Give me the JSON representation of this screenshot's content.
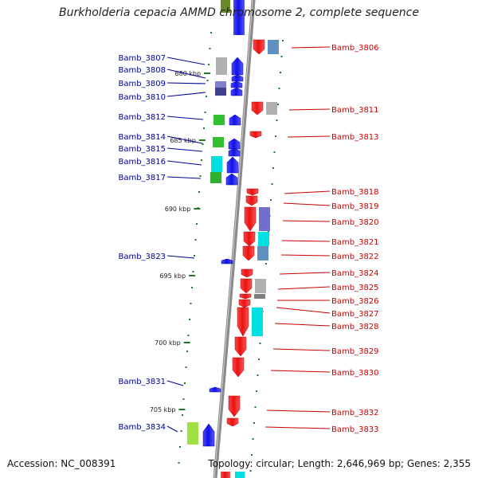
{
  "title": "Burkholderia cepacia AMMD chromosome 2, complete sequence",
  "footer": {
    "accession": "Accession: NC_008391",
    "stats": "Topology: circular; Length: 2,646,969 bp; Genes: 2,355"
  },
  "colors": {
    "backbone": "#8a8a8a",
    "forward_strand": "#1010ee",
    "reverse_strand": "#ee1010",
    "forward_label": "#000099",
    "reverse_label": "#cc0000",
    "tick": "#1e7a1e"
  },
  "axis": {
    "unit": "kbp",
    "visible_tick_labels": [
      "680 kbp",
      "685 kbp",
      "690 kbp",
      "695 kbp",
      "700 kbp",
      "705 kbp"
    ]
  },
  "forward_genes": [
    {
      "label": "Bamb_3807",
      "cog_color": "#b0b0b0"
    },
    {
      "label": "Bamb_3808",
      "cog_color": ""
    },
    {
      "label": "Bamb_3809",
      "cog_color": "#8080cc"
    },
    {
      "label": "Bamb_3810",
      "cog_color": "#404090"
    },
    {
      "label": "Bamb_3812",
      "cog_color": "#30c030"
    },
    {
      "label": "Bamb_3814",
      "cog_color": "#30c030"
    },
    {
      "label": "Bamb_3815",
      "cog_color": ""
    },
    {
      "label": "Bamb_3816",
      "cog_color": "#00e0e0"
    },
    {
      "label": "Bamb_3817",
      "cog_color": "#30b030"
    },
    {
      "label": "Bamb_3823",
      "cog_color": ""
    },
    {
      "label": "Bamb_3831",
      "cog_color": ""
    },
    {
      "label": "Bamb_3834",
      "cog_color": "#a0e040"
    }
  ],
  "reverse_genes": [
    {
      "label": "Bamb_3806",
      "cog_color": "#6090c0"
    },
    {
      "label": "Bamb_3811",
      "cog_color": "#b0b0b0"
    },
    {
      "label": "Bamb_3813",
      "cog_color": ""
    },
    {
      "label": "Bamb_3818",
      "cog_color": ""
    },
    {
      "label": "Bamb_3819",
      "cog_color": ""
    },
    {
      "label": "Bamb_3820",
      "cog_color": "#7070cc"
    },
    {
      "label": "Bamb_3821",
      "cog_color": "#00e0e0"
    },
    {
      "label": "Bamb_3822",
      "cog_color": "#6090c0"
    },
    {
      "label": "Bamb_3824",
      "cog_color": ""
    },
    {
      "label": "Bamb_3825",
      "cog_color": "#b0b0b0"
    },
    {
      "label": "Bamb_3826",
      "cog_color": "#808080"
    },
    {
      "label": "Bamb_3827",
      "cog_color": ""
    },
    {
      "label": "Bamb_3828",
      "cog_color": "#00e0e0"
    },
    {
      "label": "Bamb_3829",
      "cog_color": ""
    },
    {
      "label": "Bamb_3830",
      "cog_color": ""
    },
    {
      "label": "Bamb_3832",
      "cog_color": ""
    },
    {
      "label": "Bamb_3833",
      "cog_color": ""
    }
  ]
}
